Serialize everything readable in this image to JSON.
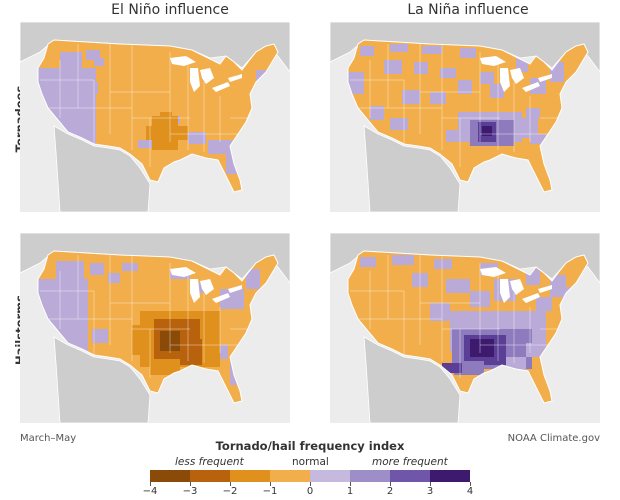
{
  "columns": [
    "El Niño influence",
    "La Niña influence"
  ],
  "rows": [
    "Tornadoes",
    "Hailstorms"
  ],
  "credit_left": "March–May",
  "credit_right": "NOAA Climate.gov",
  "legend": {
    "title": "Tornado/hail frequency index",
    "less": "less frequent",
    "normal": "normal",
    "more": "more frequent",
    "ticks": [
      "−4",
      "−3",
      "−2",
      "−1",
      "0",
      "1",
      "2",
      "3",
      "4"
    ],
    "colors": [
      "#8a4a08",
      "#b8620e",
      "#e0901c",
      "#f2ae4a",
      "#c5b9dd",
      "#9e8ec7",
      "#6f56a8",
      "#3d1a6e"
    ]
  },
  "map_colors": {
    "background": "#ececec",
    "land": "#cdcdcd",
    "water": "#ffffff",
    "orange": "#f2ae4a",
    "orange_mid": "#e0901c",
    "orange_dark": "#b8620e",
    "orange_deep": "#8a4a08",
    "purple": "#b9aad8",
    "purple_mid": "#8e7bbd",
    "purple_dark": "#5b3f96",
    "purple_deep": "#3d1a6e"
  }
}
